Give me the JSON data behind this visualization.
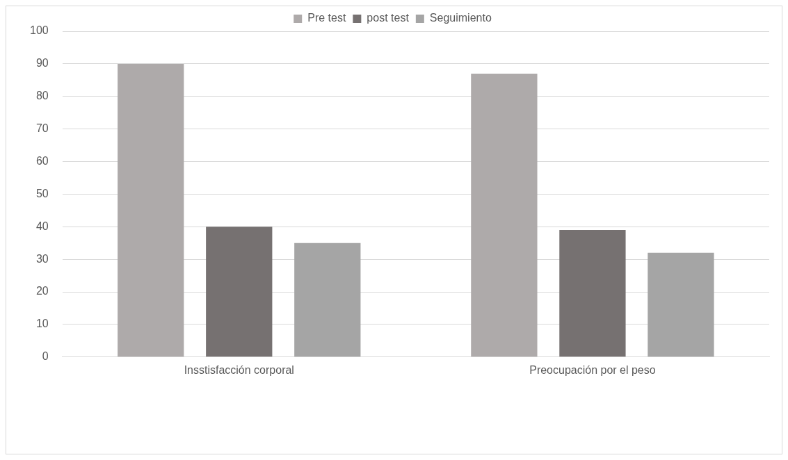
{
  "chart_data": {
    "type": "bar",
    "categories": [
      "Insstisfacción corporal",
      "Preocupación por el peso"
    ],
    "series": [
      {
        "name": "Pre test",
        "color": "#aeaaaa",
        "values": [
          90,
          87
        ]
      },
      {
        "name": "post test",
        "color": "#767171",
        "values": [
          40,
          39
        ]
      },
      {
        "name": "Seguimiento",
        "color": "#a5a5a5",
        "values": [
          35,
          32
        ]
      }
    ],
    "ylim": [
      0,
      100
    ],
    "yticks": [
      0,
      10,
      20,
      30,
      40,
      50,
      60,
      70,
      80,
      90,
      100
    ],
    "grid": "y",
    "legend": "top"
  }
}
